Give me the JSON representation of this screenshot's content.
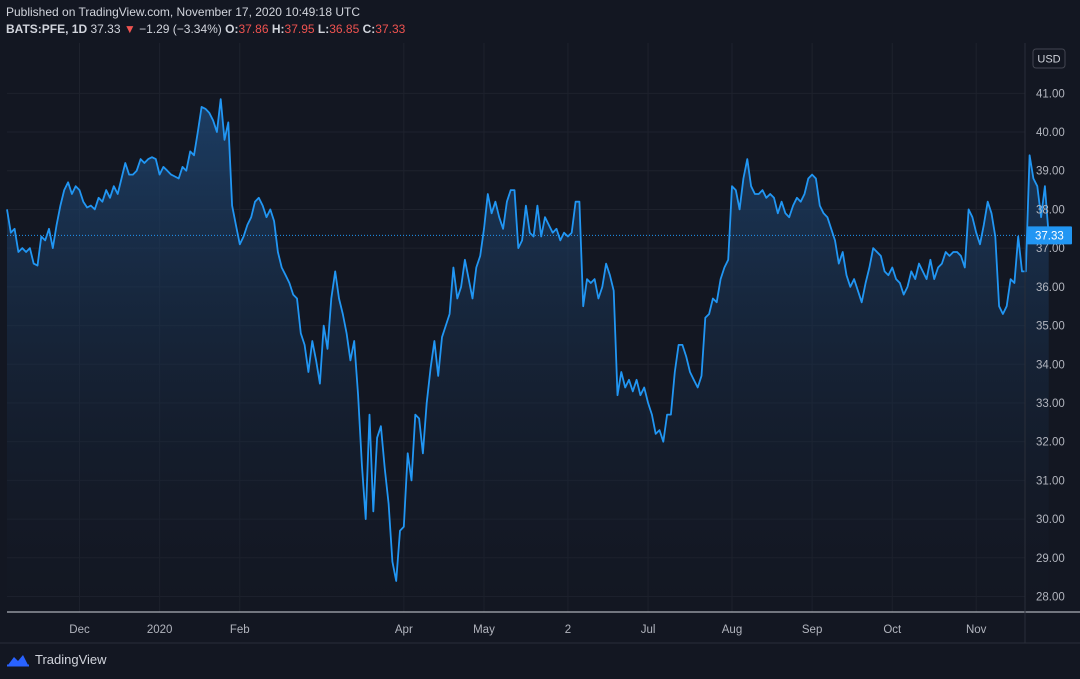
{
  "header": {
    "published": "Published on TradingView.com, November 17, 2020 10:49:18 UTC",
    "symbol": "BATS:PFE, 1D",
    "last": "37.33",
    "change": "−1.29 (−3.34%)",
    "open_label": "O:",
    "open": "37.86",
    "high_label": "H:",
    "high": "37.95",
    "low_label": "L:",
    "low": "36.85",
    "close_label": "C:",
    "close": "37.33"
  },
  "currency_label": "USD",
  "last_price_label": "37.33",
  "brand": "TradingView",
  "colors": {
    "background": "#131722",
    "line": "#2196f3",
    "fill_top": "#1f4a7a",
    "grid": "#1e222d",
    "text": "#b2b5be",
    "negative": "#ef5350",
    "price_tag": "#2196f3"
  },
  "chart_data": {
    "type": "area",
    "ylim": [
      27.6,
      42.3
    ],
    "xlim": [
      0,
      266
    ],
    "y_ticks": [
      "28.00",
      "29.00",
      "30.00",
      "31.00",
      "32.00",
      "33.00",
      "34.00",
      "35.00",
      "36.00",
      "37.00",
      "38.00",
      "39.00",
      "40.00",
      "41.00"
    ],
    "x_ticks": [
      {
        "label": "Dec",
        "x": 19
      },
      {
        "label": "2020",
        "x": 40
      },
      {
        "label": "Feb",
        "x": 61
      },
      {
        "label": "Apr",
        "x": 104
      },
      {
        "label": "May",
        "x": 125
      },
      {
        "label": "2",
        "x": 147
      },
      {
        "label": "Jul",
        "x": 168
      },
      {
        "label": "Aug",
        "x": 190
      },
      {
        "label": "Sep",
        "x": 211
      },
      {
        "label": "Oct",
        "x": 232
      },
      {
        "label": "Nov",
        "x": 254
      }
    ],
    "last_value": 37.33,
    "series": [
      {
        "values": [
          38.0,
          37.4,
          37.5,
          36.9,
          37.0,
          36.9,
          37.0,
          36.6,
          36.55,
          37.3,
          37.2,
          37.5,
          37.0,
          37.6,
          38.1,
          38.5,
          38.7,
          38.4,
          38.6,
          38.5,
          38.2,
          38.05,
          38.1,
          38.0,
          38.3,
          38.2,
          38.5,
          38.3,
          38.6,
          38.4,
          38.8,
          39.2,
          38.9,
          38.9,
          39.0,
          39.3,
          39.2,
          39.3,
          39.35,
          39.3,
          38.9,
          39.1,
          39.0,
          38.9,
          38.85,
          38.8,
          39.1,
          39.0,
          39.5,
          39.4,
          40.0,
          40.65,
          40.6,
          40.5,
          40.3,
          40.0,
          40.85,
          39.8,
          40.25,
          38.1,
          37.6,
          37.1,
          37.3,
          37.6,
          37.8,
          38.2,
          38.3,
          38.1,
          37.8,
          38.0,
          37.7,
          36.9,
          36.5,
          36.3,
          36.1,
          35.8,
          35.7,
          34.8,
          34.5,
          33.8,
          34.6,
          34.1,
          33.5,
          35.0,
          34.4,
          35.7,
          36.4,
          35.7,
          35.3,
          34.8,
          34.1,
          34.6,
          33.2,
          31.4,
          30.0,
          32.7,
          30.2,
          32.1,
          32.4,
          31.3,
          30.4,
          28.9,
          28.4,
          29.7,
          29.8,
          31.7,
          31.0,
          32.7,
          32.6,
          31.7,
          33.0,
          33.9,
          34.6,
          33.7,
          34.7,
          35.0,
          35.3,
          36.5,
          35.7,
          36.0,
          36.7,
          36.2,
          35.7,
          36.5,
          36.8,
          37.5,
          38.4,
          37.9,
          38.2,
          37.8,
          37.5,
          38.2,
          38.5,
          38.5,
          37.0,
          37.2,
          38.1,
          37.4,
          37.3,
          38.1,
          37.3,
          37.8,
          37.6,
          37.4,
          37.5,
          37.2,
          37.4,
          37.3,
          37.4,
          38.2,
          38.2,
          35.5,
          36.2,
          36.1,
          36.2,
          35.7,
          36.0,
          36.6,
          36.3,
          35.9,
          33.2,
          33.8,
          33.4,
          33.6,
          33.3,
          33.6,
          33.2,
          33.4,
          33.0,
          32.7,
          32.2,
          32.3,
          32.0,
          32.7,
          32.7,
          33.8,
          34.5,
          34.5,
          34.2,
          33.8,
          33.6,
          33.4,
          33.7,
          35.2,
          35.3,
          35.7,
          35.6,
          36.2,
          36.5,
          36.7,
          38.6,
          38.5,
          38.0,
          38.8,
          39.3,
          38.6,
          38.4,
          38.4,
          38.5,
          38.3,
          38.4,
          38.3,
          37.9,
          38.2,
          37.9,
          37.8,
          38.1,
          38.3,
          38.2,
          38.4,
          38.8,
          38.9,
          38.8,
          38.1,
          37.9,
          37.8,
          37.5,
          37.2,
          36.6,
          36.9,
          36.3,
          36.0,
          36.2,
          35.9,
          35.6,
          36.1,
          36.5,
          37.0,
          36.9,
          36.8,
          36.4,
          36.3,
          36.5,
          36.2,
          36.1,
          35.8,
          36.0,
          36.4,
          36.2,
          36.6,
          36.4,
          36.2,
          36.7,
          36.2,
          36.5,
          36.6,
          36.9,
          36.8,
          36.9,
          36.9,
          36.8,
          36.5,
          38.0,
          37.8,
          37.4,
          37.1,
          37.6,
          38.2,
          37.9,
          37.3,
          35.5,
          35.3,
          35.5,
          36.2,
          36.1,
          37.3,
          36.4,
          36.4,
          39.4,
          38.8,
          38.6,
          37.8,
          38.6,
          37.33
        ]
      }
    ]
  }
}
